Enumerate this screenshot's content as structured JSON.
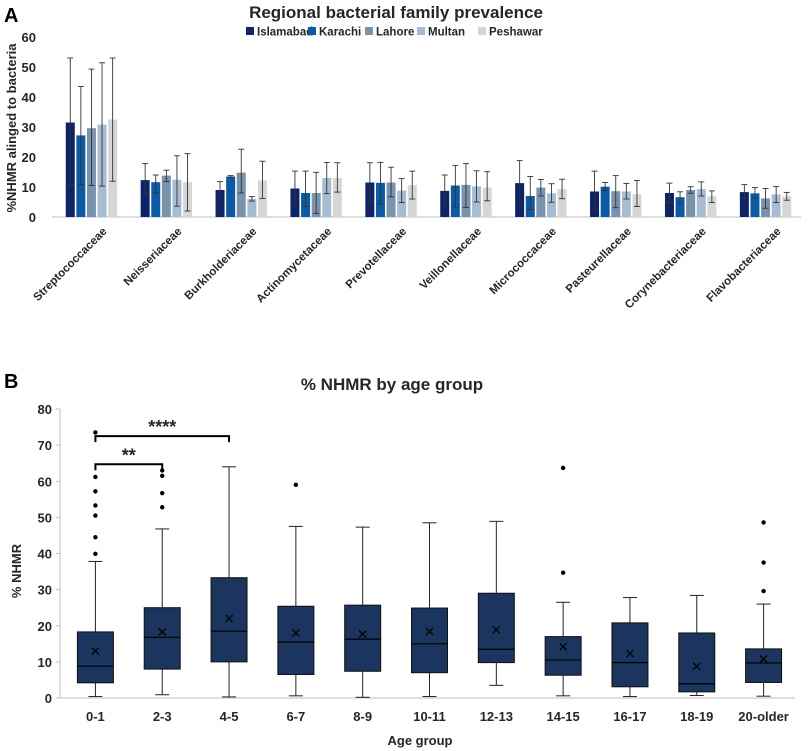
{
  "panel_a_letter": "A",
  "panel_b_letter": "B",
  "chart_data": [
    {
      "type": "bar",
      "title": "Regional bacterial family prevalence",
      "ylabel": "%NHMR alinged to bacteria",
      "xlabel": "",
      "ylim": [
        0,
        60
      ],
      "yticks": [
        0,
        10,
        20,
        30,
        40,
        50,
        60
      ],
      "legend_position": "top",
      "categories": [
        "Streptococcaceae",
        "Neisseriaceae",
        "Burkholderiaceae",
        "Actinomycetaceae",
        "Prevotellaceae",
        "Veillonellaceae",
        "Micrococcaceae",
        "Pasteurellaceae",
        "Corynebacteriaceae",
        "Flavobacteriaceae"
      ],
      "series": [
        {
          "name": "Islamabad",
          "color": "#0f2466",
          "values": [
            31.5,
            12.3,
            9.0,
            9.5,
            11.5,
            8.7,
            11.3,
            8.5,
            8.0,
            8.3
          ],
          "err_low": [
            10.5,
            8.0,
            6.3,
            4.2,
            4.7,
            3.5,
            4.0,
            2.0,
            4.6,
            6.1
          ],
          "err_high": [
            53.0,
            17.8,
            11.8,
            15.3,
            18.1,
            14.0,
            18.8,
            15.3,
            11.3,
            10.8
          ]
        },
        {
          "name": "Karachi",
          "color": "#0c5aa3",
          "values": [
            27.2,
            11.6,
            13.5,
            8.0,
            11.4,
            10.5,
            7.0,
            10.1,
            6.6,
            7.9
          ],
          "err_low": [
            10.8,
            8.0,
            13.2,
            3.5,
            4.3,
            3.3,
            2.5,
            8.8,
            4.5,
            6.3
          ],
          "err_high": [
            43.5,
            14.0,
            13.8,
            15.3,
            18.2,
            17.2,
            13.5,
            11.5,
            8.4,
            9.8
          ]
        },
        {
          "name": "Lahore",
          "color": "#7993ad",
          "values": [
            29.6,
            13.8,
            14.8,
            8.0,
            11.5,
            10.7,
            9.8,
            8.6,
            9.0,
            6.2
          ],
          "err_low": [
            10.5,
            11.8,
            8.0,
            1.2,
            6.7,
            3.2,
            7.0,
            3.1,
            7.9,
            2.9
          ],
          "err_high": [
            49.3,
            15.6,
            22.6,
            14.9,
            16.6,
            17.8,
            12.5,
            13.8,
            10.1,
            9.5
          ]
        },
        {
          "name": "Multan",
          "color": "#a7bcd2",
          "values": [
            30.8,
            12.4,
            6.0,
            13.0,
            8.8,
            10.2,
            7.9,
            8.5,
            9.3,
            7.5
          ],
          "err_low": [
            10.3,
            3.6,
            5.3,
            7.8,
            4.8,
            5.0,
            4.9,
            6.0,
            7.0,
            4.8
          ],
          "err_high": [
            51.4,
            20.4,
            6.8,
            18.2,
            12.8,
            15.4,
            11.1,
            11.2,
            11.7,
            10.2
          ]
        },
        {
          "name": "Peshawar",
          "color": "#d6d6d6",
          "values": [
            32.5,
            11.6,
            12.2,
            13.0,
            10.6,
            9.8,
            9.3,
            7.6,
            6.9,
            6.9
          ],
          "err_low": [
            11.9,
            2.0,
            6.2,
            8.3,
            6.0,
            5.4,
            6.1,
            3.5,
            4.8,
            5.6
          ],
          "err_high": [
            53.0,
            21.1,
            18.6,
            18.1,
            15.3,
            15.1,
            12.6,
            12.2,
            8.7,
            8.2
          ]
        }
      ]
    },
    {
      "type": "box",
      "title": "% NHMR by age group",
      "ylabel": "% NHMR",
      "xlabel": "Age group",
      "ylim": [
        0,
        80
      ],
      "yticks": [
        0,
        10,
        20,
        30,
        40,
        50,
        60,
        70,
        80
      ],
      "color": "#1c355e",
      "categories": [
        "0-1",
        "2-3",
        "4-5",
        "6-7",
        "8-9",
        "10-11",
        "12-13",
        "14-15",
        "16-17",
        "18-19",
        "20-older"
      ],
      "boxes": [
        {
          "whisker_low": 0.4,
          "q1": 4.2,
          "median": 8.8,
          "q3": 18.3,
          "whisker_high": 37.8,
          "mean": 13.0,
          "outliers": [
            39.9,
            44.5,
            50.5,
            53.3,
            57.2,
            61.2,
            73.5
          ]
        },
        {
          "whisker_low": 0.9,
          "q1": 8.0,
          "median": 16.8,
          "q3": 25.0,
          "whisker_high": 46.8,
          "mean": 18.3,
          "outliers": [
            52.8,
            56.7,
            61.5,
            63.0
          ]
        },
        {
          "whisker_low": 0.3,
          "q1": 10.0,
          "median": 18.5,
          "q3": 33.3,
          "whisker_high": 64.0,
          "mean": 22.0,
          "outliers": []
        },
        {
          "whisker_low": 0.6,
          "q1": 6.5,
          "median": 15.5,
          "q3": 25.4,
          "whisker_high": 47.5,
          "mean": 18.0,
          "outliers": [
            59.0
          ]
        },
        {
          "whisker_low": 0.2,
          "q1": 7.4,
          "median": 16.3,
          "q3": 25.7,
          "whisker_high": 47.3,
          "mean": 17.7,
          "outliers": []
        },
        {
          "whisker_low": 0.4,
          "q1": 7.0,
          "median": 15.0,
          "q3": 24.9,
          "whisker_high": 48.5,
          "mean": 18.4,
          "outliers": []
        },
        {
          "whisker_low": 3.5,
          "q1": 9.8,
          "median": 13.5,
          "q3": 29.0,
          "whisker_high": 48.9,
          "mean": 18.9,
          "outliers": []
        },
        {
          "whisker_low": 0.6,
          "q1": 6.3,
          "median": 10.5,
          "q3": 17.0,
          "whisker_high": 26.5,
          "mean": 14.2,
          "outliers": [
            34.7,
            63.7
          ]
        },
        {
          "whisker_low": 0.4,
          "q1": 3.1,
          "median": 9.8,
          "q3": 20.8,
          "whisker_high": 27.8,
          "mean": 12.3,
          "outliers": []
        },
        {
          "whisker_low": 0.7,
          "q1": 1.7,
          "median": 3.9,
          "q3": 18.0,
          "whisker_high": 28.4,
          "mean": 8.8,
          "outliers": []
        },
        {
          "whisker_low": 0.5,
          "q1": 4.3,
          "median": 9.7,
          "q3": 13.6,
          "whisker_high": 26.0,
          "mean": 10.8,
          "outliers": [
            29.6,
            37.5,
            48.6
          ]
        }
      ],
      "annotations": [
        {
          "label": "**",
          "from": "0-1",
          "to": "2-3"
        },
        {
          "label": "****",
          "from": "0-1",
          "to": "4-5"
        }
      ]
    }
  ]
}
